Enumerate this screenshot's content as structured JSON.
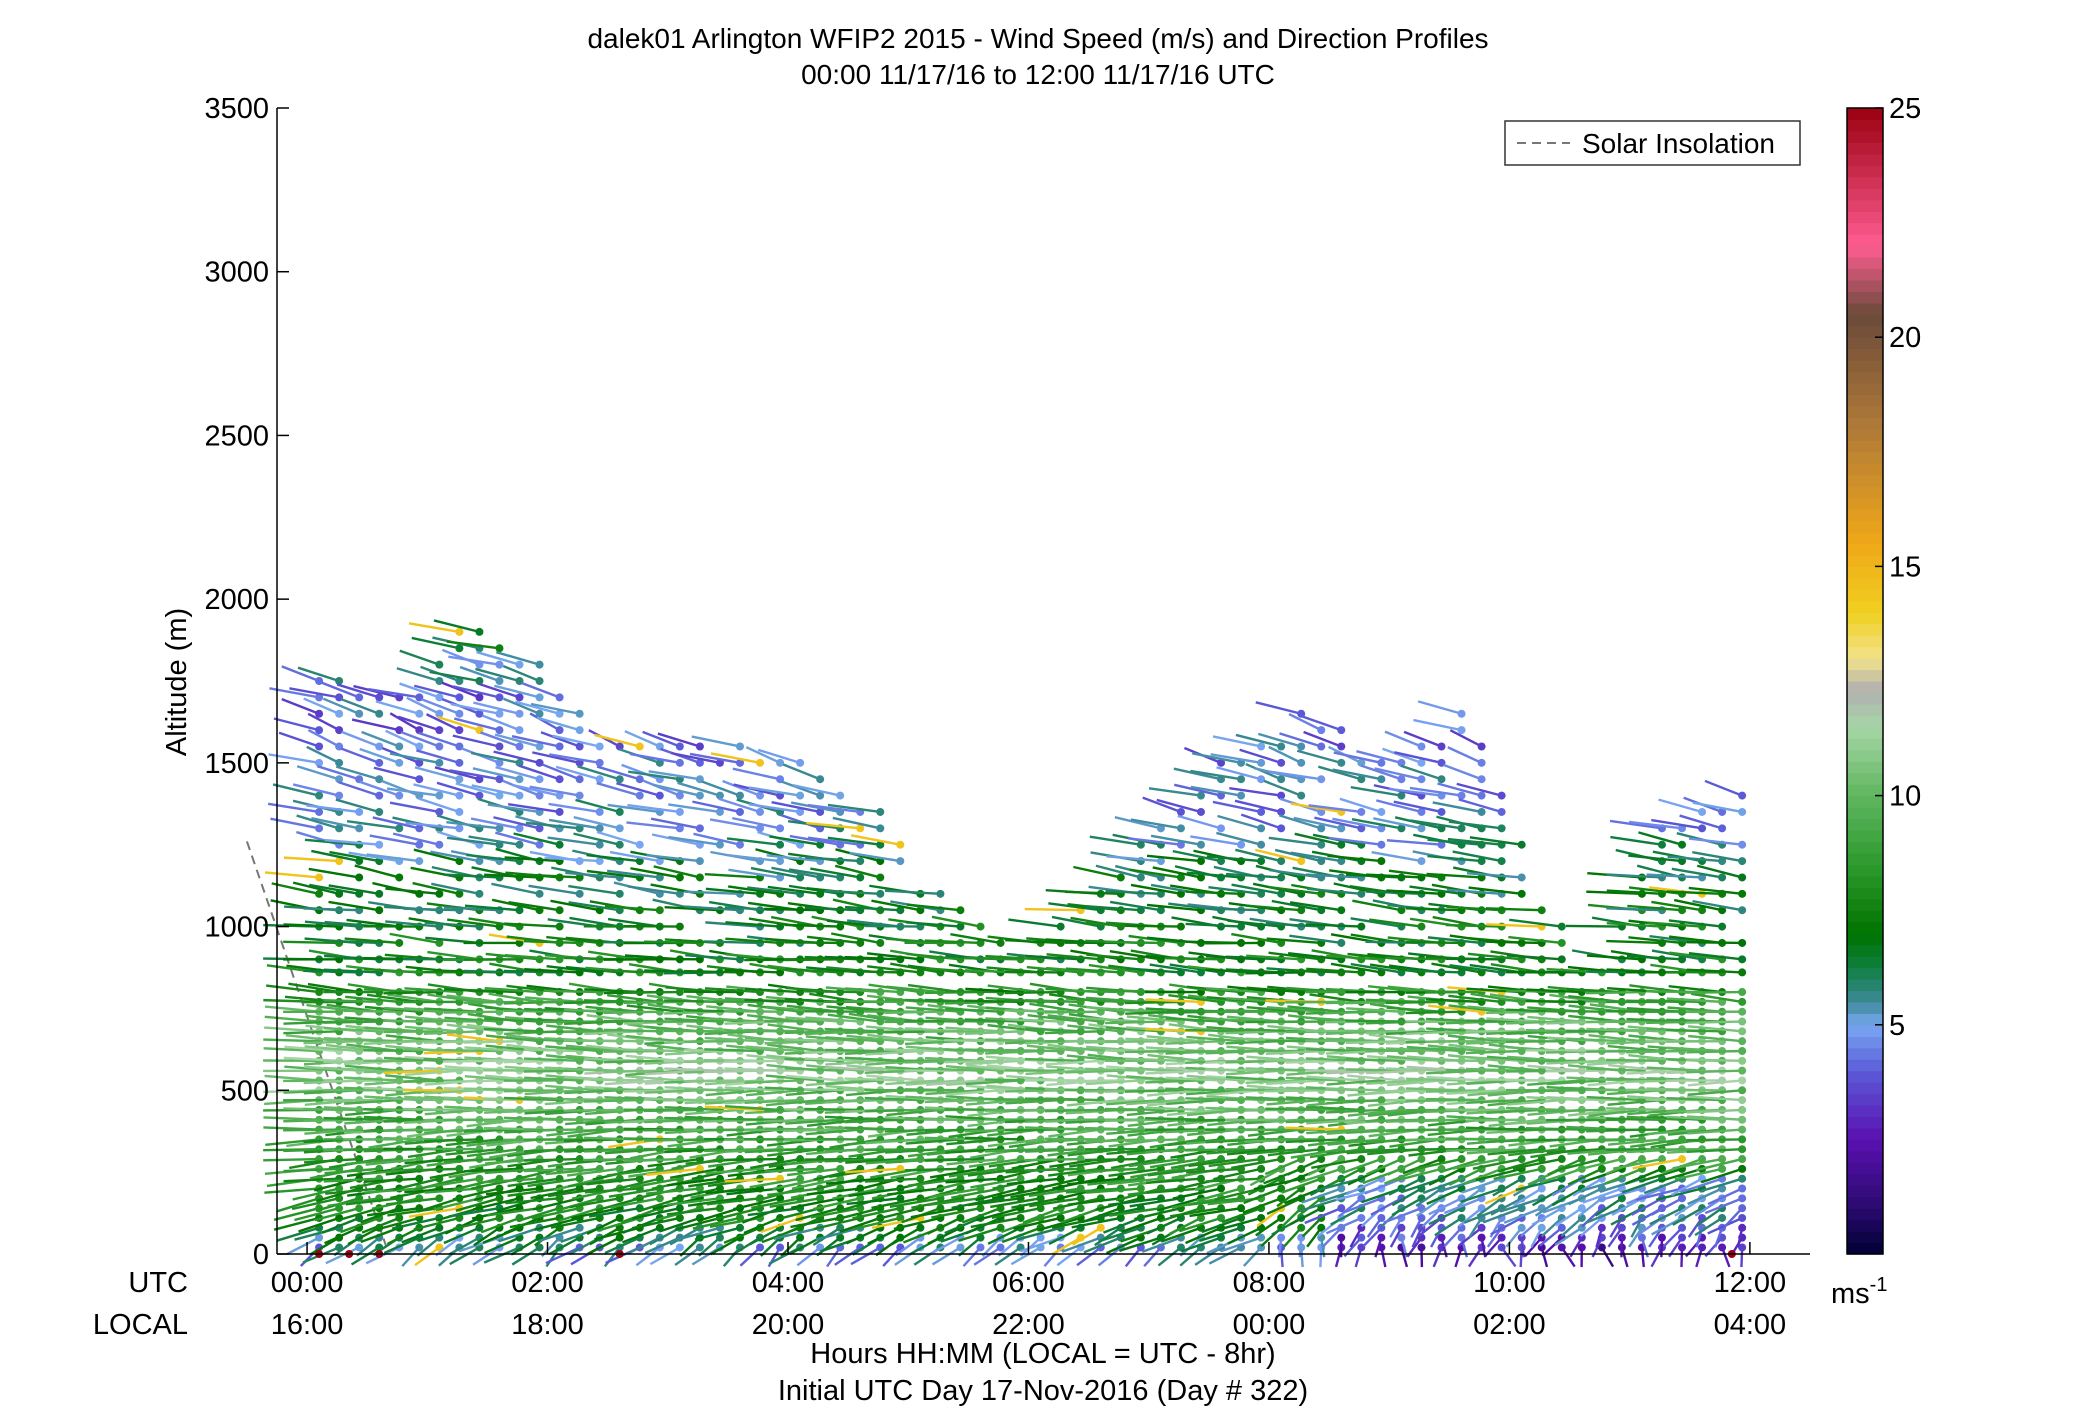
{
  "chart_data": {
    "type": "scatter",
    "title": "dalek01 Arlington WFIP2 2015 - Wind Speed (m/s) and Direction Profiles",
    "subtitle": "00:00 11/17/16 to 12:00 11/17/16  UTC",
    "ylabel": "Altitude (m)",
    "xlabel": "Hours HH:MM  (LOCAL = UTC - 8hr)",
    "xlabel2": "Initial UTC Day 17-Nov-2016 (Day # 322)",
    "row_label_utc": "UTC",
    "row_label_local": "LOCAL",
    "xlim": [
      -0.25,
      12.5
    ],
    "ylim": [
      0,
      3500
    ],
    "x_ticks_utc": [
      "00:00",
      "02:00",
      "04:00",
      "06:00",
      "08:00",
      "10:00",
      "12:00"
    ],
    "x_ticks_local": [
      "16:00",
      "18:00",
      "20:00",
      "22:00",
      "00:00",
      "02:00",
      "04:00"
    ],
    "x_tick_hours": [
      0,
      2,
      4,
      6,
      8,
      10,
      12
    ],
    "y_ticks": [
      0,
      500,
      1000,
      1500,
      2000,
      2500,
      3000,
      3500
    ],
    "legend": {
      "label": "Solar Insolation",
      "position": "top-right",
      "style": "dashed gray"
    },
    "solar_insolation": {
      "hours": [
        -0.5,
        0.68
      ],
      "altitude": [
        1260,
        0
      ]
    },
    "colorbar": {
      "min": 0,
      "max": 25,
      "ticks": [
        5,
        10,
        15,
        20,
        25
      ],
      "unit_label": "ms",
      "unit_exp": "-1",
      "stops": [
        {
          "v": 0,
          "c": "#000033"
        },
        {
          "v": 1,
          "c": "#2a0a6e"
        },
        {
          "v": 2.5,
          "c": "#5a10b0"
        },
        {
          "v": 4,
          "c": "#5b5bd8"
        },
        {
          "v": 5,
          "c": "#79a7f2"
        },
        {
          "v": 5.5,
          "c": "#3d8a9a"
        },
        {
          "v": 6.3,
          "c": "#0d7e3a"
        },
        {
          "v": 7,
          "c": "#007300"
        },
        {
          "v": 8.5,
          "c": "#2e9a2e"
        },
        {
          "v": 10,
          "c": "#5fb65f"
        },
        {
          "v": 11.5,
          "c": "#a7d6a7"
        },
        {
          "v": 12.3,
          "c": "#b0b0b0"
        },
        {
          "v": 13,
          "c": "#f2e28a"
        },
        {
          "v": 14,
          "c": "#f0d020"
        },
        {
          "v": 15.5,
          "c": "#f0a818"
        },
        {
          "v": 18,
          "c": "#b07a38"
        },
        {
          "v": 20.5,
          "c": "#6a4a3a"
        },
        {
          "v": 22,
          "c": "#ff5c92"
        },
        {
          "v": 25,
          "c": "#9a0010"
        }
      ]
    },
    "profiles": {
      "time_start_hour": 0.1,
      "time_step_hour": 0.1667,
      "columns": 72,
      "altitudes_m": [
        20,
        50,
        80,
        110,
        140,
        170,
        200,
        230,
        260,
        290,
        320,
        350,
        380,
        410,
        440,
        470,
        500,
        530,
        560,
        590,
        620,
        650,
        680,
        710,
        740,
        770,
        800,
        860,
        900,
        950,
        1000,
        1050,
        1100,
        1150,
        1200,
        1250,
        1300,
        1350,
        1400,
        1450,
        1500,
        1550,
        1600,
        1650,
        1700,
        1750,
        1800,
        1850,
        1900
      ],
      "top_altitude_by_hour": [
        [
          0.1,
          1820
        ],
        [
          0.9,
          1700
        ],
        [
          1.3,
          1950
        ],
        [
          1.9,
          1820
        ],
        [
          2.5,
          1560
        ],
        [
          3.3,
          1600
        ],
        [
          4.0,
          1520
        ],
        [
          4.7,
          1400
        ],
        [
          5.2,
          1150
        ],
        [
          5.9,
          930
        ],
        [
          6.5,
          1080
        ],
        [
          7.0,
          1300
        ],
        [
          7.6,
          1500
        ],
        [
          8.3,
          1700
        ],
        [
          9.0,
          1500
        ],
        [
          9.6,
          1720
        ],
        [
          10.2,
          1200
        ],
        [
          10.7,
          820
        ],
        [
          11.2,
          1290
        ],
        [
          11.8,
          1400
        ]
      ],
      "speed_by_altitude": [
        [
          0,
          4.5
        ],
        [
          100,
          7.2
        ],
        [
          250,
          8.2
        ],
        [
          400,
          9.4
        ],
        [
          550,
          10.8
        ],
        [
          700,
          9.8
        ],
        [
          850,
          7.4
        ],
        [
          1000,
          7.0
        ],
        [
          1150,
          6.4
        ],
        [
          1300,
          5.0
        ],
        [
          1500,
          4.6
        ],
        [
          1700,
          4.4
        ],
        [
          1950,
          8.0
        ]
      ],
      "direction_deg_by_altitude": [
        [
          0,
          200
        ],
        [
          150,
          240
        ],
        [
          400,
          265
        ],
        [
          700,
          278
        ],
        [
          1000,
          285
        ],
        [
          1300,
          300
        ],
        [
          1600,
          315
        ],
        [
          1950,
          295
        ]
      ],
      "surface_markers": {
        "hours": [
          0.1,
          0.35,
          0.6,
          2.6,
          11.85
        ],
        "altitude": 0,
        "speed": 25
      }
    }
  }
}
